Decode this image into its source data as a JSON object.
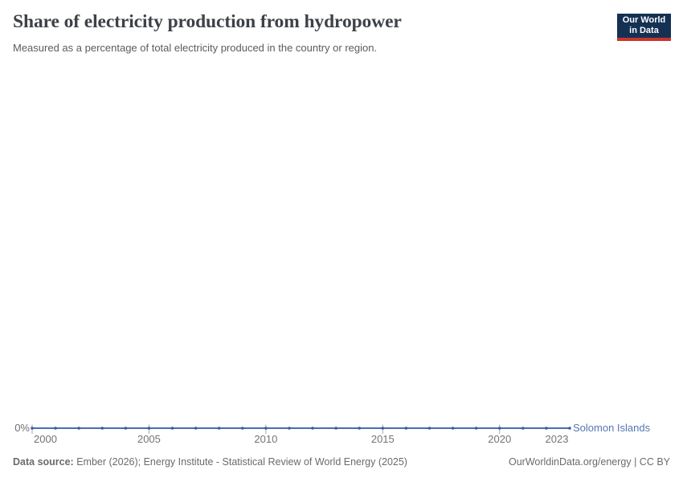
{
  "header": {
    "title": "Share of electricity production from hydropower",
    "subtitle": "Measured as a percentage of total electricity produced in the country or region.",
    "logo": {
      "line1": "Our World",
      "line2": "in Data"
    }
  },
  "chart_data": {
    "type": "line",
    "title": "Share of electricity production from hydropower",
    "x": [
      2000,
      2001,
      2002,
      2003,
      2004,
      2005,
      2006,
      2007,
      2008,
      2009,
      2010,
      2011,
      2012,
      2013,
      2014,
      2015,
      2016,
      2017,
      2018,
      2019,
      2020,
      2021,
      2022,
      2023
    ],
    "series": [
      {
        "name": "Solomon Islands",
        "values": [
          0,
          0,
          0,
          0,
          0,
          0,
          0,
          0,
          0,
          0,
          0,
          0,
          0,
          0,
          0,
          0,
          0,
          0,
          0,
          0,
          0,
          0,
          0,
          0
        ]
      }
    ],
    "unit": "%",
    "xlim": [
      2000,
      2023
    ],
    "x_ticks": [
      2000,
      2005,
      2010,
      2015,
      2020,
      2023
    ],
    "y_ticks": [
      "0%"
    ],
    "grid": false,
    "legend_position": "right-of-line-end"
  },
  "footer": {
    "datasource_label": "Data source:",
    "datasource_text": " Ember (2026); Energy Institute - Statistical Review of World Energy (2025)",
    "link_text": "OurWorldinData.org/energy | CC BY"
  },
  "colors": {
    "line": "#4c6cb0",
    "marker": "#3a5c9e",
    "entity_label": "#5577b2",
    "tick_mark": "#9aa6b8",
    "axis_text": "#737373",
    "title_text": "#3d4248",
    "logo_bg": "#143154",
    "logo_red": "#ca362c"
  }
}
